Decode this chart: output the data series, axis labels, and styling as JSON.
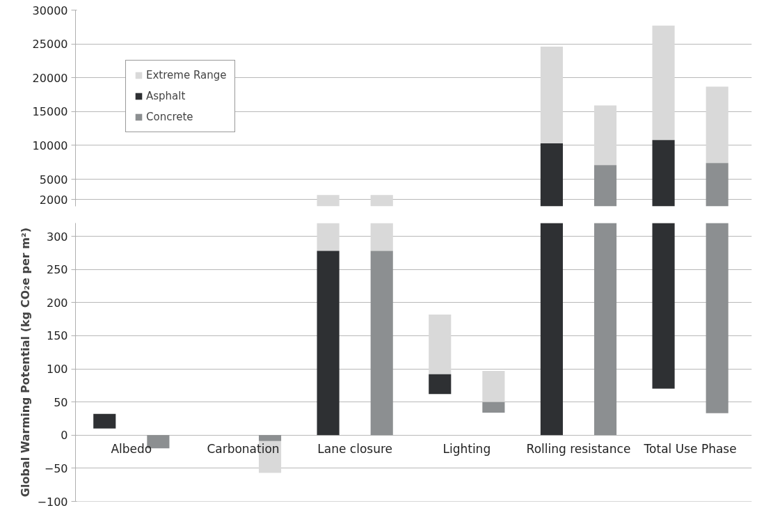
{
  "chart_data": [
    {
      "type": "bar",
      "categories": [
        null,
        null,
        null,
        null,
        null,
        null
      ],
      "series": [
        {
          "name": "Extreme Range",
          "color": "#d9d9d9",
          "base": [
            null,
            null,
            278,
            null,
            10300,
            10800
          ],
          "values": [
            null,
            null,
            2400,
            null,
            14300,
            16900
          ]
        },
        {
          "name": "Asphalt",
          "color": "#2e3033",
          "values": [
            null,
            null,
            null,
            null,
            10300,
            10800
          ]
        },
        {
          "color": "#d9d9d9",
          "base": [
            null,
            null,
            278,
            null,
            7100,
            7400
          ],
          "values": [
            null,
            null,
            2400,
            null,
            8800,
            11300
          ]
        },
        {
          "name": "Concrete",
          "color": "#8c8f91",
          "values": [
            null,
            null,
            null,
            null,
            7100,
            7400
          ]
        }
      ],
      "ylim": [
        1000,
        30000
      ],
      "yticks": [
        2000,
        5000,
        10000,
        15000,
        20000,
        25000,
        30000
      ],
      "grid": "y",
      "legend": "top left",
      "tick_labels": "y"
    },
    {
      "type": "bar",
      "categories": [
        "Albedo",
        "Carbonation",
        "Lane closure",
        "Lighting",
        "Rolling resistance",
        "Total Use Phase"
      ],
      "series": [
        {
          "color": "#d9d9d9",
          "base": [
            null,
            null,
            278,
            92,
            10300,
            10800
          ],
          "values": [
            null,
            null,
            2400,
            90,
            14300,
            16900
          ]
        },
        {
          "color": "#2e3033",
          "base": [
            10,
            null,
            0,
            62,
            0,
            70
          ],
          "values": [
            22,
            null,
            278,
            30,
            10300,
            10730
          ]
        },
        {
          "color": "#d9d9d9",
          "base": [
            null,
            -9,
            278,
            50,
            7100,
            7400
          ],
          "values": [
            null,
            -48,
            2400,
            47,
            8800,
            11300
          ]
        },
        {
          "color": "#8c8f91",
          "base": [
            0,
            0,
            0,
            34,
            0,
            33
          ],
          "values": [
            -20,
            -9,
            278,
            16,
            7100,
            7367
          ]
        }
      ],
      "ylim": [
        -100,
        320
      ],
      "yticks": [
        -100,
        -50,
        0,
        50,
        100,
        150,
        200,
        250,
        300
      ],
      "grid": "y",
      "ylabel": "Global Warming Potential (kg CO₂e per m²)"
    }
  ]
}
